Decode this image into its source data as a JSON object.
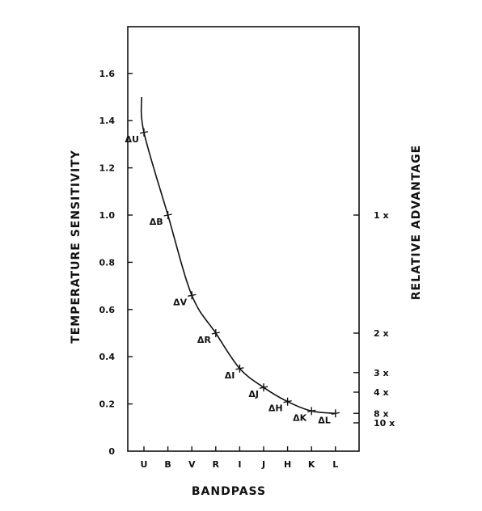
{
  "chart_data": {
    "type": "line",
    "title": "",
    "xlabel": "BANDPASS",
    "ylabel": "TEMPERATURE SENSITIVITY",
    "y2label": "RELATIVE ADVANTAGE",
    "ylim": [
      0,
      1.8
    ],
    "y_ticks": [
      0,
      0.2,
      0.4,
      0.6,
      0.8,
      1.0,
      1.2,
      1.4,
      1.6
    ],
    "y_tick_labels": [
      "0",
      "0.2",
      "0.4",
      "0.6",
      "0.8",
      "1.0",
      "1.2",
      "1.4",
      "1.6"
    ],
    "categories": [
      "U",
      "B",
      "V",
      "R",
      "I",
      "J",
      "H",
      "K",
      "L"
    ],
    "series": [
      {
        "values": [
          1.35,
          1.0,
          0.66,
          0.5,
          0.35,
          0.27,
          0.21,
          0.17,
          0.16
        ],
        "point_labels": [
          "ΔU",
          "ΔB",
          "ΔV",
          "ΔR",
          "ΔI",
          "ΔJ",
          "ΔH",
          "ΔK",
          "ΔL"
        ]
      }
    ],
    "curve_start": {
      "x_index": -0.1,
      "y": 1.5
    },
    "right_axis": [
      {
        "label": "1 x",
        "y": 1.0
      },
      {
        "label": "2 x",
        "y": 0.5
      },
      {
        "label": "3 x",
        "y": 0.333
      },
      {
        "label": "4 x",
        "y": 0.25
      },
      {
        "label": "8 x",
        "y": 0.16
      },
      {
        "label": "10 x",
        "y": 0.12
      }
    ],
    "grid": false,
    "legend": "none"
  }
}
